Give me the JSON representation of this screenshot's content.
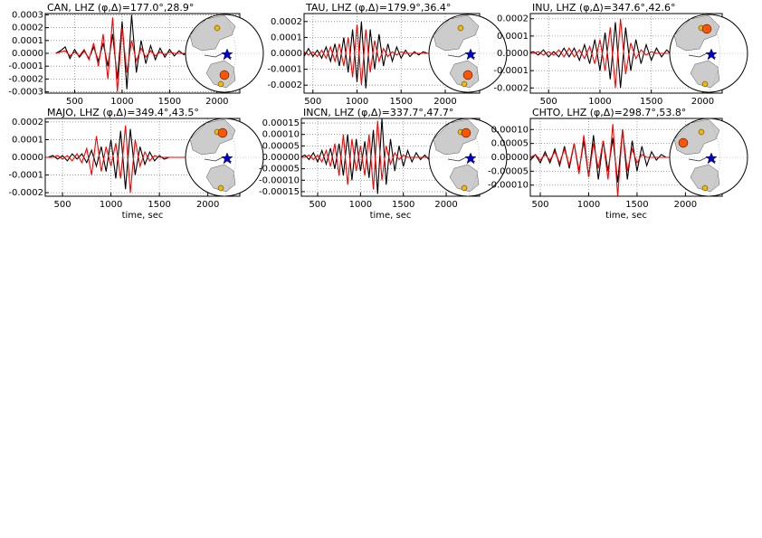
{
  "chart_data": [
    {
      "type": "line",
      "title": "CAN, LHZ (φ,Δ)=177.0°,28.9°",
      "x": [
        300,
        350,
        400,
        450,
        500,
        550,
        600,
        650,
        700,
        750,
        800,
        850,
        900,
        950,
        1000,
        1050,
        1100,
        1150,
        1200,
        1250,
        1300,
        1350,
        1400,
        1450,
        1500,
        1550,
        1600,
        1650,
        1700,
        1750,
        1800,
        1850,
        1900
      ],
      "series": [
        {
          "color": "#000000",
          "values": [
            0,
            2e-05,
            5e-05,
            -4e-05,
            3e-05,
            -3e-05,
            2e-05,
            -4e-05,
            5e-05,
            -6e-05,
            8e-05,
            -0.0001,
            0.00015,
            -0.0002,
            0.00025,
            -0.00028,
            0.0003,
            -0.00015,
            0.0001,
            -8e-05,
            6e-05,
            -5e-05,
            4e-05,
            -3e-05,
            3e-05,
            -2e-05,
            2e-05,
            -1e-05,
            1e-05,
            0,
            1e-05,
            0,
            0
          ]
        },
        {
          "color": "#ff0000",
          "values": [
            0,
            1e-05,
            2e-05,
            -2e-05,
            1e-05,
            -2e-05,
            3e-05,
            -5e-05,
            8e-05,
            -0.0001,
            0.00015,
            -0.0002,
            0.00028,
            -0.0003,
            0.0002,
            -0.00015,
            0.0001,
            -6e-05,
            4e-05,
            -3e-05,
            2e-05,
            -2e-05,
            1e-05,
            -1e-05,
            1e-05,
            0,
            0,
            0,
            0,
            0,
            0,
            0,
            0
          ]
        }
      ],
      "xlim": [
        190,
        2240
      ],
      "xticks": [
        500,
        1000,
        1500,
        2000
      ],
      "ylim": [
        -0.00031,
        0.00031
      ],
      "yticks": [
        -0.0003,
        -0.0002,
        -0.0001,
        {
          "value": 0,
          "label": "0.0000"
        },
        0.0001,
        0.0002,
        0.0003
      ],
      "grid": true
    },
    {
      "type": "line",
      "title": "TAU, LHZ (φ,Δ)=179.9°,36.4°",
      "x": [
        300,
        350,
        400,
        450,
        500,
        550,
        600,
        650,
        700,
        750,
        800,
        850,
        900,
        950,
        1000,
        1050,
        1100,
        1150,
        1200,
        1250,
        1300,
        1350,
        1400,
        1450,
        1500,
        1550,
        1600,
        1650,
        1700,
        1750,
        1800,
        1850,
        1900
      ],
      "series": [
        {
          "color": "#000000",
          "values": [
            0,
            1e-05,
            -2e-05,
            3e-05,
            -2e-05,
            2e-05,
            -3e-05,
            4e-05,
            -5e-05,
            6e-05,
            -8e-05,
            0.0001,
            -0.00012,
            0.00015,
            -0.00018,
            0.0002,
            -0.00022,
            0.00015,
            -0.0001,
            0.00012,
            -8e-05,
            6e-05,
            -5e-05,
            4e-05,
            -3e-05,
            2e-05,
            -2e-05,
            1e-05,
            -1e-05,
            1e-05,
            0,
            0,
            0
          ]
        },
        {
          "color": "#ff0000",
          "values": [
            0,
            0,
            1e-05,
            -1e-05,
            1e-05,
            -2e-05,
            2e-05,
            -3e-05,
            4e-05,
            -5e-05,
            6e-05,
            -8e-05,
            0.0001,
            -0.00015,
            0.00018,
            -0.0002,
            0.00015,
            -0.00012,
            8e-05,
            -5e-05,
            3e-05,
            -2e-05,
            1e-05,
            -1e-05,
            1e-05,
            0,
            0,
            0,
            0,
            0,
            0,
            0,
            0
          ]
        }
      ],
      "xlim": [
        400,
        2390
      ],
      "xticks": [
        500,
        1000,
        1500,
        2000
      ],
      "ylim": [
        -0.00025,
        0.00025
      ],
      "yticks": [
        -0.0002,
        -0.0001,
        {
          "value": 0,
          "label": "0.0000"
        },
        0.0001,
        0.0002
      ],
      "grid": true
    },
    {
      "type": "line",
      "title": "INU, LHZ (φ,Δ)=347.6°,42.6°",
      "x": [
        300,
        350,
        400,
        450,
        500,
        550,
        600,
        650,
        700,
        750,
        800,
        850,
        900,
        950,
        1000,
        1050,
        1100,
        1150,
        1200,
        1250,
        1300,
        1350,
        1400,
        1450,
        1500,
        1550,
        1600,
        1650,
        1700,
        1750,
        1800,
        1850,
        1900
      ],
      "series": [
        {
          "color": "#000000",
          "values": [
            0,
            1e-05,
            -1e-05,
            2e-05,
            -2e-05,
            1e-05,
            -2e-05,
            3e-05,
            -2e-05,
            3e-05,
            -4e-05,
            5e-05,
            -6e-05,
            8e-05,
            -0.0001,
            0.00012,
            -0.00015,
            0.00018,
            -0.0002,
            0.00015,
            -0.0001,
            8e-05,
            -6e-05,
            5e-05,
            -4e-05,
            3e-05,
            -2e-05,
            2e-05,
            -1e-05,
            1e-05,
            0,
            0,
            0
          ]
        },
        {
          "color": "#ff0000",
          "values": [
            0,
            0,
            1e-05,
            -1e-05,
            1e-05,
            -1e-05,
            2e-05,
            -2e-05,
            3e-05,
            -2e-05,
            2e-05,
            -3e-05,
            4e-05,
            -6e-05,
            8e-05,
            -0.0001,
            0.00015,
            -0.0002,
            0.0002,
            -0.00012,
            6e-05,
            -3e-05,
            2e-05,
            -1e-05,
            1e-05,
            0,
            0,
            0,
            0,
            0,
            0,
            0,
            0
          ]
        }
      ],
      "xlim": [
        322,
        2190
      ],
      "xticks": [
        500,
        1000,
        1500,
        2000
      ],
      "ylim": [
        -0.00023,
        0.00023
      ],
      "yticks": [
        -0.0002,
        -0.0001,
        {
          "value": 0,
          "label": "0.0000"
        },
        0.0001,
        0.0002
      ],
      "grid": true
    },
    {
      "type": "line",
      "title": "MAJO, LHZ (φ,Δ)=349.4°,43.5°",
      "xlabel": "time, sec",
      "x": [
        300,
        350,
        400,
        450,
        500,
        550,
        600,
        650,
        700,
        750,
        800,
        850,
        900,
        950,
        1000,
        1050,
        1100,
        1150,
        1200,
        1250,
        1300,
        1350,
        1400,
        1450,
        1500,
        1550,
        1600,
        1650,
        1700,
        1750,
        1800,
        1850,
        1900
      ],
      "series": [
        {
          "color": "#000000",
          "values": [
            0,
            0,
            1e-05,
            -1e-05,
            1e-05,
            -2e-05,
            2e-05,
            -1e-05,
            2e-05,
            -3e-05,
            4e-05,
            -5e-05,
            6e-05,
            -8e-05,
            0.0001,
            -0.00012,
            0.00015,
            -0.00018,
            0.00016,
            -0.0001,
            6e-05,
            -4e-05,
            3e-05,
            -2e-05,
            1e-05,
            -1e-05,
            0,
            0,
            0,
            0,
            0,
            0,
            0
          ]
        },
        {
          "color": "#ff0000",
          "values": [
            0,
            0,
            0,
            1e-05,
            -1e-05,
            1e-05,
            -2e-05,
            2e-05,
            -3e-05,
            5e-05,
            -0.0001,
            0.00012,
            -8e-05,
            6e-05,
            -5e-05,
            8e-05,
            -0.00012,
            0.00018,
            -0.0002,
            0.0001,
            -5e-05,
            3e-05,
            -2e-05,
            1e-05,
            0,
            0,
            0,
            0,
            0,
            0,
            0,
            0,
            0
          ]
        }
      ],
      "xlim": [
        322,
        2330
      ],
      "xticks": [
        500,
        1000,
        1500,
        2000
      ],
      "ylim": [
        -0.00022,
        0.00022
      ],
      "yticks": [
        -0.0002,
        -0.0001,
        {
          "value": 0,
          "label": "0.0000"
        },
        0.0001,
        0.0002
      ],
      "grid": true
    },
    {
      "type": "line",
      "title": "INCN, LHZ (φ,Δ)=337.7°,47.7°",
      "xlabel": "time, sec",
      "x": [
        300,
        350,
        400,
        450,
        500,
        550,
        600,
        650,
        700,
        750,
        800,
        850,
        900,
        950,
        1000,
        1050,
        1100,
        1150,
        1200,
        1250,
        1300,
        1350,
        1400,
        1450,
        1500,
        1550,
        1600,
        1650,
        1700,
        1750,
        1800,
        1850,
        1900
      ],
      "series": [
        {
          "color": "#000000",
          "values": [
            0,
            1e-05,
            -1e-05,
            2e-05,
            -2e-05,
            3e-05,
            -3e-05,
            4e-05,
            -5e-05,
            6e-05,
            -8e-05,
            0.0001,
            -0.0001,
            8e-05,
            -6e-05,
            7e-05,
            -9e-05,
            0.00012,
            -0.00016,
            0.00017,
            -0.00012,
            8e-05,
            -6e-05,
            5e-05,
            -4e-05,
            3e-05,
            -2e-05,
            2e-05,
            -1e-05,
            1e-05,
            -1e-05,
            0,
            0
          ]
        },
        {
          "color": "#ff0000",
          "values": [
            0,
            0,
            1e-05,
            -1e-05,
            1e-05,
            -2e-05,
            3e-05,
            -4e-05,
            6e-05,
            -8e-05,
            0.0001,
            -0.00012,
            8e-05,
            -6e-05,
            5e-05,
            -8e-05,
            0.0001,
            -0.00014,
            0.00016,
            -0.0001,
            5e-05,
            -3e-05,
            2e-05,
            -1e-05,
            1e-05,
            0,
            0,
            0,
            0,
            0,
            0,
            0,
            0
          ]
        }
      ],
      "xlim": [
        310,
        2390
      ],
      "xticks": [
        500,
        1000,
        1500,
        2000
      ],
      "ylim": [
        -0.00017,
        0.00017
      ],
      "yticks": [
        -0.00015,
        {
          "value": -0.0001,
          "label": "-0.00010"
        },
        -5e-05,
        {
          "value": 0,
          "label": "0.00000"
        },
        5e-05,
        {
          "value": 0.0001,
          "label": "0.00010"
        },
        0.00015
      ],
      "grid": true
    },
    {
      "type": "line",
      "title": "CHTO, LHZ (φ,Δ)=298.7°,53.8°",
      "xlabel": "time, sec",
      "x": [
        300,
        350,
        400,
        450,
        500,
        550,
        600,
        650,
        700,
        750,
        800,
        850,
        900,
        950,
        1000,
        1050,
        1100,
        1150,
        1200,
        1250,
        1300,
        1350,
        1400,
        1450,
        1500,
        1550,
        1600,
        1650,
        1700,
        1750,
        1800,
        1850,
        1900
      ],
      "series": [
        {
          "color": "#000000",
          "values": [
            0,
            1e-05,
            -1e-05,
            1e-05,
            -2e-05,
            2e-05,
            -2e-05,
            3e-05,
            -3e-05,
            4e-05,
            -4e-05,
            5e-05,
            -5e-05,
            6e-05,
            -7e-05,
            8e-05,
            -8e-05,
            6e-05,
            -5e-05,
            7e-05,
            -9e-05,
            0.0001,
            -8e-05,
            6e-05,
            -5e-05,
            4e-05,
            -3e-05,
            2e-05,
            -1e-05,
            1e-05,
            0,
            0,
            0
          ]
        },
        {
          "color": "#ff0000",
          "values": [
            0,
            0,
            0,
            1e-05,
            -1e-05,
            1e-05,
            -1e-05,
            2e-05,
            -2e-05,
            3e-05,
            -3e-05,
            5e-05,
            -6e-05,
            8e-05,
            -7e-05,
            5e-05,
            -4e-05,
            6e-05,
            -8e-05,
            0.00012,
            -0.00014,
            0.0001,
            -5e-05,
            3e-05,
            -2e-05,
            1e-05,
            0,
            0,
            0,
            0,
            0,
            0,
            0
          ]
        }
      ],
      "xlim": [
        397,
        2380
      ],
      "xticks": [
        500,
        1000,
        1500,
        2000
      ],
      "ylim": [
        -0.00014,
        0.00014
      ],
      "yticks": [
        {
          "value": -0.0001,
          "label": "-0.00010"
        },
        -5e-05,
        {
          "value": 0,
          "label": "0.00000"
        },
        5e-05,
        {
          "value": 0.0001,
          "label": "0.00010"
        }
      ],
      "grid": true
    }
  ]
}
